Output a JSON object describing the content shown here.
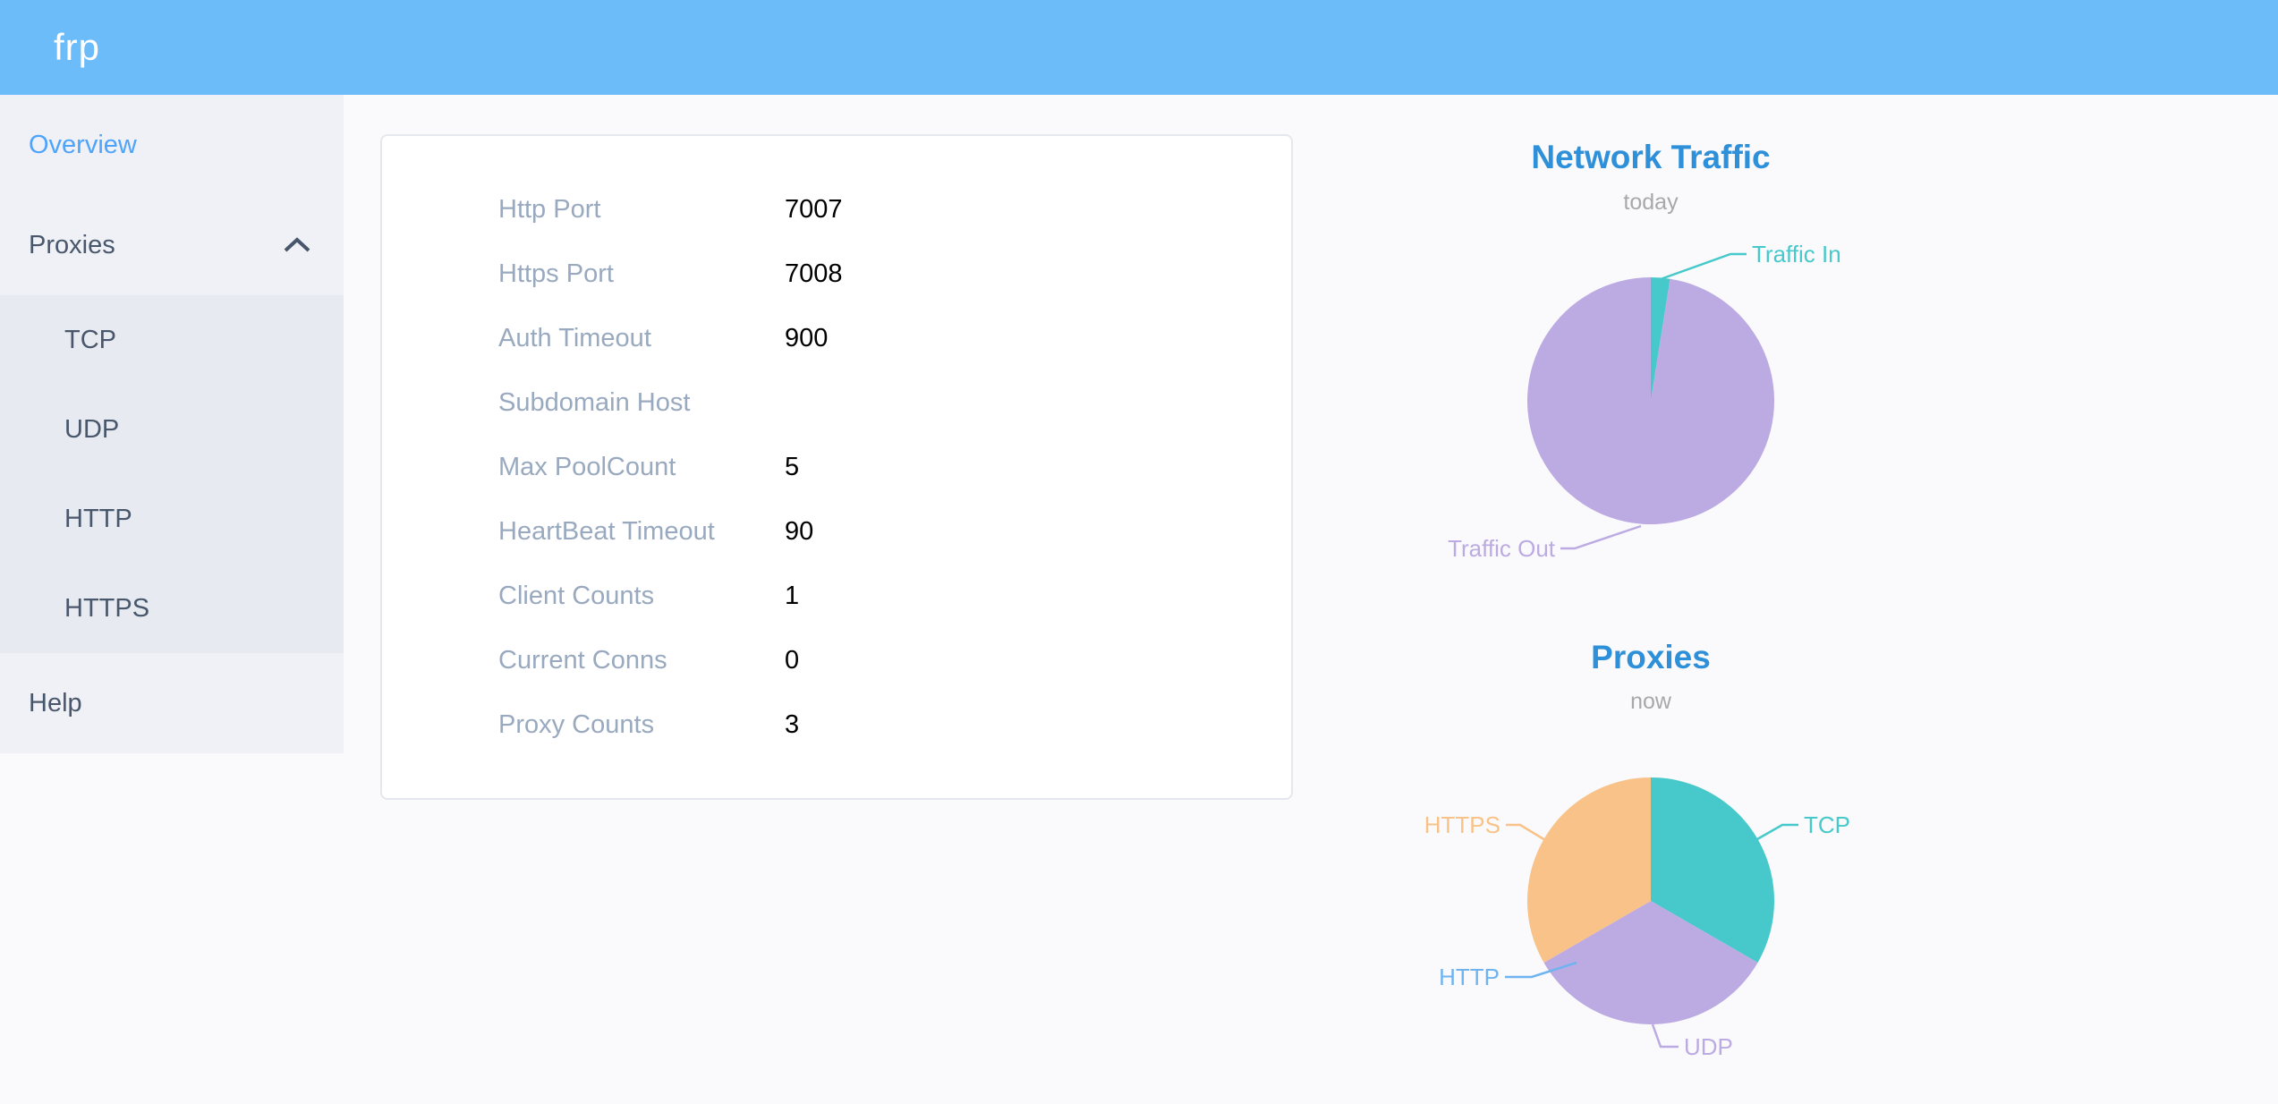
{
  "header": {
    "logo": "frp"
  },
  "sidebar": {
    "overview": "Overview",
    "proxies": "Proxies",
    "proxy_types": [
      "TCP",
      "UDP",
      "HTTP",
      "HTTPS"
    ],
    "help": "Help",
    "active_item": "Overview"
  },
  "server_info": {
    "rows": [
      {
        "label": "Http Port",
        "value": "7007"
      },
      {
        "label": "Https Port",
        "value": "7008"
      },
      {
        "label": "Auth Timeout",
        "value": "900"
      },
      {
        "label": "Subdomain Host",
        "value": ""
      },
      {
        "label": "Max PoolCount",
        "value": "5"
      },
      {
        "label": "HeartBeat Timeout",
        "value": "90"
      },
      {
        "label": "Client Counts",
        "value": "1"
      },
      {
        "label": "Current Conns",
        "value": "0"
      },
      {
        "label": "Proxy Counts",
        "value": "3"
      }
    ]
  },
  "chart_data": [
    {
      "type": "pie",
      "title": "Network Traffic",
      "subtitle": "today",
      "unit": "share_pct",
      "legend_position": "callout-labels",
      "slices": [
        {
          "label": "Traffic In",
          "value": 2.5,
          "color": "#47c9cb"
        },
        {
          "label": "Traffic Out",
          "value": 97.5,
          "color": "#bcaae2"
        }
      ]
    },
    {
      "type": "pie",
      "title": "Proxies",
      "subtitle": "now",
      "unit": "count",
      "legend_position": "callout-labels",
      "slices": [
        {
          "label": "TCP",
          "value": 1,
          "color": "#47c9cb"
        },
        {
          "label": "UDP",
          "value": 1,
          "color": "#bcaae2"
        },
        {
          "label": "HTTP",
          "value": 0,
          "color": "#6fb3f0"
        },
        {
          "label": "HTTPS",
          "value": 1,
          "color": "#f8c289"
        }
      ]
    }
  ],
  "colors": {
    "header_bg": "#6cbcfa",
    "active_menu_blue": "#4ea3fa",
    "chart_title_blue": "#2f90da",
    "label_gray": "#99a9bf",
    "sidebar_text": "#48576b"
  }
}
